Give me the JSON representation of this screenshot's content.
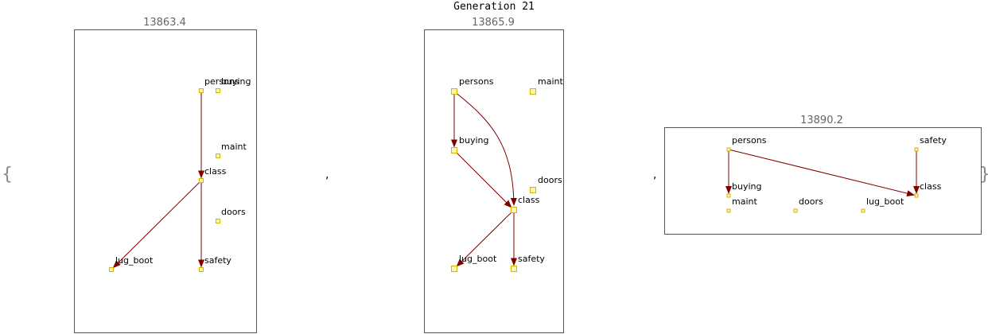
{
  "title": "Generation 21",
  "brace_open": "{",
  "brace_close": "}",
  "separators": [
    ",",
    ","
  ],
  "colors": {
    "frame": "#555555",
    "score_text": "#666666",
    "edge": "#800000",
    "node_fill": "#fff3b0",
    "node_stroke": "#d4b600",
    "label": "#000000"
  },
  "graphs": [
    {
      "score": "13863.4",
      "nodes": [
        {
          "id": "persons",
          "label": "persons"
        },
        {
          "id": "buying",
          "label": "buying"
        },
        {
          "id": "maint",
          "label": "maint"
        },
        {
          "id": "class",
          "label": "class"
        },
        {
          "id": "doors",
          "label": "doors"
        },
        {
          "id": "lug_boot",
          "label": "lug_boot"
        },
        {
          "id": "safety",
          "label": "safety"
        }
      ],
      "edges": [
        {
          "from": "persons",
          "to": "class"
        },
        {
          "from": "class",
          "to": "lug_boot"
        },
        {
          "from": "class",
          "to": "safety"
        }
      ]
    },
    {
      "score": "13865.9",
      "nodes": [
        {
          "id": "persons",
          "label": "persons"
        },
        {
          "id": "maint",
          "label": "maint"
        },
        {
          "id": "buying",
          "label": "buying"
        },
        {
          "id": "doors",
          "label": "doors"
        },
        {
          "id": "class",
          "label": "class"
        },
        {
          "id": "lug_boot",
          "label": "lug_boot"
        },
        {
          "id": "safety",
          "label": "safety"
        }
      ],
      "edges": [
        {
          "from": "persons",
          "to": "buying"
        },
        {
          "from": "persons",
          "to": "class"
        },
        {
          "from": "buying",
          "to": "class"
        },
        {
          "from": "class",
          "to": "lug_boot"
        },
        {
          "from": "class",
          "to": "safety"
        }
      ]
    },
    {
      "score": "13890.2",
      "nodes": [
        {
          "id": "persons",
          "label": "persons"
        },
        {
          "id": "safety",
          "label": "safety"
        },
        {
          "id": "buying",
          "label": "buying"
        },
        {
          "id": "class",
          "label": "class"
        },
        {
          "id": "maint",
          "label": "maint"
        },
        {
          "id": "doors",
          "label": "doors"
        },
        {
          "id": "lug_boot",
          "label": "lug_boot"
        }
      ],
      "edges": [
        {
          "from": "persons",
          "to": "buying"
        },
        {
          "from": "persons",
          "to": "class"
        },
        {
          "from": "safety",
          "to": "class"
        }
      ]
    }
  ]
}
